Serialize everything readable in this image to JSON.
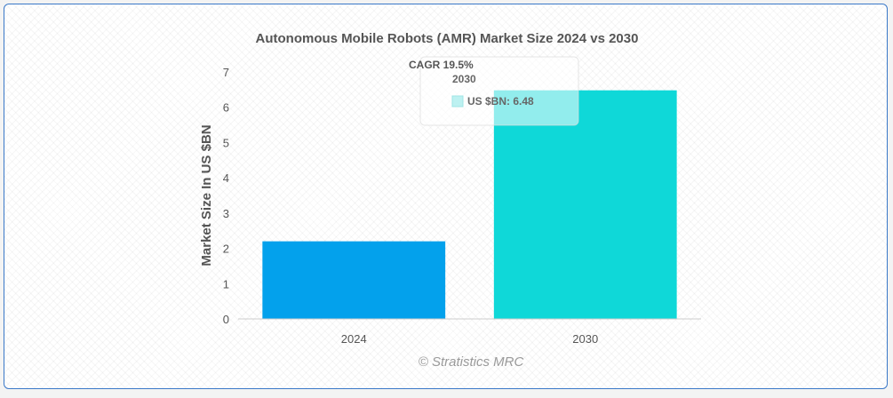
{
  "chart_data": {
    "type": "bar",
    "title": "Autonomous Mobile Robots (AMR) Market Size 2024 vs 2030",
    "categories": [
      "2024",
      "2030"
    ],
    "values": [
      2.2,
      6.48
    ],
    "ylabel": "Market Size In US $BN",
    "xlabel": "",
    "ylim": [
      0,
      7
    ],
    "yticks": [
      0,
      1,
      2,
      3,
      4,
      5,
      6,
      7
    ],
    "bar_colors": [
      "#03a1ec",
      "#0fd8d8"
    ],
    "grid": false,
    "annotation": "CAGR 19.5%",
    "tooltip": {
      "title": "2030",
      "label": "US $BN: 6.48"
    },
    "credit": "© Stratistics MRC"
  }
}
